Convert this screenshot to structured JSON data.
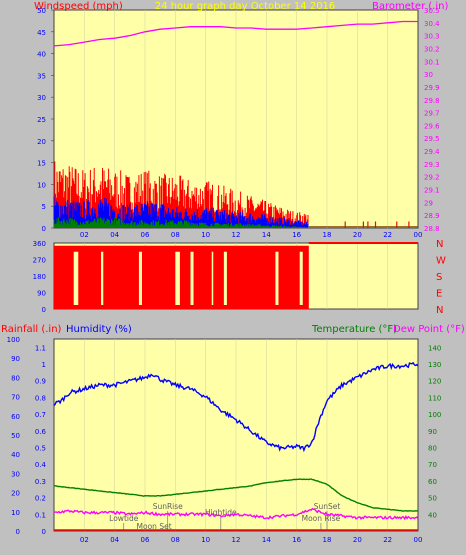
{
  "colors": {
    "plot_bg": "#ffffa8",
    "frame_bg": "#c0c0c0",
    "title": "#ffff00",
    "wind": "#ff0000",
    "gust_mid": "#0000ff",
    "wind_low": "#008000",
    "barometer": "#ff00ff",
    "direction": "#ff0000",
    "rainfall": "#ff0000",
    "humidity": "#0000ff",
    "temperature": "#008000",
    "dewpoint": "#ff00ff",
    "axis_text": "#0000ff",
    "events": "#606060"
  },
  "header": {
    "title": "24 hour graph day   October 14 2016"
  },
  "chart_data": [
    {
      "type": "line",
      "panel": "wind-barometer",
      "left_label": "Windspeed (mph)",
      "right_label": "Barometer (.in)",
      "left_ylim": [
        0,
        50
      ],
      "left_ticks": [
        "0",
        "5",
        "10",
        "15",
        "20",
        "25",
        "30",
        "35",
        "40",
        "45",
        "50"
      ],
      "right_ylim": [
        28.8,
        30.5
      ],
      "right_ticks": [
        "28.8",
        "28.9",
        "29",
        "29.1",
        "29.2",
        "29.3",
        "29.4",
        "29.5",
        "29.6",
        "29.7",
        "29.8",
        "29.9",
        "30",
        "30.1",
        "30.2",
        "30.3",
        "30.4",
        "30.5"
      ],
      "xlim": [
        0,
        24
      ],
      "x_ticks": [
        "02",
        "04",
        "06",
        "08",
        "10",
        "12",
        "14",
        "16",
        "18",
        "20",
        "22",
        "00"
      ],
      "series": [
        {
          "key": "gust_high",
          "x": [
            0,
            1,
            2,
            3,
            4,
            5,
            6,
            7,
            8,
            9,
            10,
            11,
            12,
            13,
            14,
            15,
            16,
            16.8
          ],
          "y": [
            13,
            12,
            11,
            12,
            11,
            10,
            11,
            10,
            10,
            9,
            9,
            8,
            7,
            6,
            5,
            4,
            3,
            3
          ]
        },
        {
          "key": "gust_mid",
          "x": [
            0,
            1,
            2,
            3,
            4,
            5,
            6,
            7,
            8,
            9,
            10,
            11,
            12,
            13,
            14,
            15,
            16,
            16.8
          ],
          "y": [
            6,
            5.5,
            5,
            6,
            5,
            4.5,
            5,
            5,
            4,
            4,
            4,
            3.5,
            3,
            3,
            2.5,
            2,
            1.5,
            1
          ]
        },
        {
          "key": "wind_low",
          "x": [
            0,
            1,
            2,
            3,
            4,
            5,
            6,
            7,
            8,
            9,
            10,
            11,
            12,
            13,
            14,
            15,
            16,
            16.8
          ],
          "y": [
            2,
            2,
            1.5,
            2,
            2,
            1.5,
            1.5,
            1.5,
            1.5,
            1.5,
            1,
            1,
            1,
            0.8,
            0.6,
            0.5,
            0.3,
            0.2
          ]
        },
        {
          "key": "barometer",
          "x": [
            0,
            1,
            2,
            3,
            4,
            5,
            6,
            7,
            8,
            9,
            10,
            11,
            12,
            13,
            14,
            15,
            16,
            17,
            18,
            19,
            20,
            21,
            22,
            23,
            24
          ],
          "y": [
            30.22,
            30.23,
            30.25,
            30.27,
            30.28,
            30.3,
            30.33,
            30.35,
            30.36,
            30.37,
            30.37,
            30.37,
            30.36,
            30.36,
            30.35,
            30.35,
            30.35,
            30.36,
            30.37,
            30.38,
            30.39,
            30.39,
            30.4,
            30.41,
            30.41
          ]
        }
      ]
    },
    {
      "type": "area",
      "panel": "wind-direction",
      "ylim": [
        0,
        360
      ],
      "y_ticks": [
        "0",
        "90",
        "180",
        "270",
        "360"
      ],
      "compass_labels": [
        "N",
        "W",
        "S",
        "E",
        "N"
      ],
      "xlim": [
        0,
        24
      ],
      "gaps": [
        [
          1.3,
          1.6
        ],
        [
          3.1,
          3.25
        ],
        [
          5.6,
          5.8
        ],
        [
          8.0,
          8.3
        ],
        [
          9.0,
          9.2
        ],
        [
          10.4,
          10.5
        ],
        [
          11.2,
          11.4
        ],
        [
          14.6,
          14.8
        ],
        [
          16.2,
          16.4
        ]
      ],
      "series": [
        {
          "key": "direction",
          "x": [
            0,
            16.8,
            16.8,
            24
          ],
          "y": [
            345,
            345,
            360,
            360
          ]
        }
      ]
    },
    {
      "type": "line",
      "panel": "temperature-humidity",
      "labels": {
        "rainfall": "Rainfall (.in)",
        "humidity": "Humidity (%)",
        "temperature": "Temperature (°F)",
        "dewpoint": "Dew Point (°F)"
      },
      "humidity_ylim": [
        0,
        100
      ],
      "humidity_ticks": [
        "0",
        "10",
        "20",
        "30",
        "40",
        "50",
        "60",
        "70",
        "80",
        "90",
        "100"
      ],
      "rain_ylim": [
        0,
        1.15
      ],
      "rain_ticks": [
        "0",
        "0.1",
        "0.2",
        "0.3",
        "0.4",
        "0.5",
        "0.6",
        "0.7",
        "0.8",
        "0.9",
        "1",
        "1.1"
      ],
      "temp_ylim": [
        30,
        145
      ],
      "temp_ticks": [
        "40",
        "50",
        "60",
        "70",
        "80",
        "90",
        "100",
        "110",
        "120",
        "130",
        "140"
      ],
      "xlim": [
        0,
        24
      ],
      "x_ticks": [
        "02",
        "04",
        "06",
        "08",
        "10",
        "12",
        "14",
        "16",
        "18",
        "20",
        "22",
        "00"
      ],
      "events": [
        {
          "label": "Lowtide",
          "x": 4.6,
          "row": 2
        },
        {
          "label": "SunRise",
          "x": 7.5,
          "row": 0
        },
        {
          "label": "Moon Set",
          "x": 6.6,
          "row": 3
        },
        {
          "label": "Hightide",
          "x": 11.0,
          "row": 1
        },
        {
          "label": "SunSet",
          "x": 18.0,
          "row": 0
        },
        {
          "label": "Moon Rise",
          "x": 17.6,
          "row": 2
        }
      ],
      "series": [
        {
          "key": "humidity",
          "x": [
            0,
            0.5,
            1,
            2,
            3,
            4,
            5,
            6,
            6.5,
            7,
            8,
            9,
            10,
            11,
            12,
            13,
            14,
            15,
            16,
            16.5,
            17,
            17.5,
            18,
            19,
            20,
            21,
            22,
            23,
            24
          ],
          "y": [
            66,
            68,
            72,
            74,
            76,
            76,
            78,
            80,
            82,
            79,
            76,
            74,
            70,
            63,
            58,
            52,
            46,
            43,
            44,
            43,
            46,
            58,
            68,
            76,
            80,
            84,
            86,
            86,
            87
          ]
        },
        {
          "key": "temperature",
          "x": [
            0,
            1,
            2,
            3,
            4,
            5,
            6,
            7,
            8,
            9,
            10,
            11,
            12,
            13,
            14,
            15,
            16,
            17,
            18,
            19,
            20,
            21,
            22,
            23,
            24
          ],
          "y": [
            57,
            56,
            55,
            54,
            53,
            52,
            51,
            51,
            52,
            53,
            54,
            55,
            56,
            57,
            59,
            60,
            61,
            61,
            58,
            51,
            47,
            44,
            43,
            42,
            42
          ]
        },
        {
          "key": "dewpoint",
          "x": [
            0,
            1,
            2,
            3,
            4,
            5,
            6,
            7,
            8,
            9,
            10,
            11,
            12,
            13,
            14,
            15,
            16,
            17,
            18,
            19,
            20,
            21,
            22,
            23,
            24
          ],
          "y": [
            41,
            42,
            41,
            41,
            41,
            40,
            41,
            40,
            40,
            40,
            40,
            39,
            40,
            39,
            38,
            39,
            40,
            43,
            40,
            39,
            38,
            38,
            38,
            38,
            38
          ]
        }
      ]
    }
  ]
}
